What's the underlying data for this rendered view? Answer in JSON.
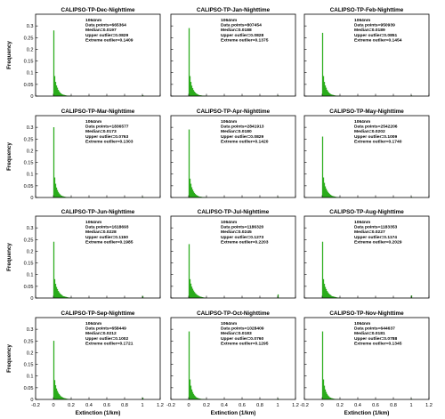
{
  "figure": {
    "y_label": "Frequency",
    "x_label": "Extinction (1/km)"
  },
  "chart_data": [
    {
      "type": "bar",
      "title": "CALIPSO-TP-Dec-Nighttime",
      "stats": [
        "1064nm",
        "Data points=665364",
        "Median=0.0197",
        "Upper outlier=0.0829",
        "Extreme outlier=0.1409"
      ],
      "bin_start": 0,
      "bin_width": 0.01,
      "values": [
        0.28,
        0.085,
        0.06,
        0.045,
        0.035,
        0.026,
        0.02,
        0.015,
        0.011,
        0.008,
        0.006,
        0.005,
        0.004,
        0.003,
        0.002,
        0.0015,
        0.001,
        0.0008,
        0.0005,
        0.0003
      ],
      "extra_bars": [
        {
          "x": 1.0,
          "value": 0.003
        }
      ],
      "xlim": [
        -0.2,
        1.2
      ],
      "ylim": [
        0,
        0.35
      ]
    },
    {
      "type": "bar",
      "title": "CALIPSO-TP-Jan-Nighttime",
      "stats": [
        "1064nm",
        "Data points=807454",
        "Median=0.0188",
        "Upper outlier=0.0828",
        "Extreme outlier=0.1375"
      ],
      "bin_start": 0,
      "bin_width": 0.01,
      "values": [
        0.29,
        0.085,
        0.06,
        0.044,
        0.033,
        0.025,
        0.019,
        0.014,
        0.01,
        0.008,
        0.006,
        0.004,
        0.003,
        0.0025,
        0.002,
        0.0015,
        0.001,
        0.0008,
        0.0005,
        0.0003
      ],
      "extra_bars": [
        {
          "x": 1.0,
          "value": 0.002
        }
      ],
      "xlim": [
        -0.2,
        1.2
      ],
      "ylim": [
        0,
        0.35
      ]
    },
    {
      "type": "bar",
      "title": "CALIPSO-TP-Feb-Nighttime",
      "stats": [
        "1064nm",
        "Data points=950939",
        "Median=0.0189",
        "Upper outlier=0.0851",
        "Extreme outlier=0.1454"
      ],
      "bin_start": 0,
      "bin_width": 0.01,
      "values": [
        0.27,
        0.085,
        0.06,
        0.045,
        0.035,
        0.026,
        0.02,
        0.015,
        0.011,
        0.008,
        0.006,
        0.005,
        0.004,
        0.003,
        0.002,
        0.0015,
        0.001,
        0.0008,
        0.0005,
        0.0003
      ],
      "extra_bars": [
        {
          "x": 1.0,
          "value": 0.002
        }
      ],
      "xlim": [
        -0.2,
        1.2
      ],
      "ylim": [
        0,
        0.35
      ]
    },
    {
      "type": "bar",
      "title": "CALIPSO-TP-Mar-Nighttime",
      "stats": [
        "1064nm",
        "Data points=1836577",
        "Median=0.0173",
        "Upper outlier=0.0763",
        "Extreme outlier=0.1303"
      ],
      "bin_start": 0,
      "bin_width": 0.01,
      "values": [
        0.3,
        0.085,
        0.058,
        0.042,
        0.031,
        0.023,
        0.017,
        0.013,
        0.009,
        0.007,
        0.005,
        0.004,
        0.003,
        0.002,
        0.0015,
        0.001,
        0.0008,
        0.0005,
        0.0003,
        0.0002
      ],
      "extra_bars": [
        {
          "x": 1.0,
          "value": 0.002
        }
      ],
      "xlim": [
        -0.2,
        1.2
      ],
      "ylim": [
        0,
        0.35
      ]
    },
    {
      "type": "bar",
      "title": "CALIPSO-TP-Apr-Nighttime",
      "stats": [
        "1064nm",
        "Data points=2841913",
        "Median=0.0180",
        "Upper outlier=0.0829",
        "Extreme outlier=0.1420"
      ],
      "bin_start": 0,
      "bin_width": 0.01,
      "values": [
        0.29,
        0.08,
        0.058,
        0.043,
        0.033,
        0.025,
        0.019,
        0.014,
        0.01,
        0.008,
        0.006,
        0.004,
        0.003,
        0.0025,
        0.002,
        0.0015,
        0.001,
        0.0008,
        0.0005,
        0.0003
      ],
      "extra_bars": [
        {
          "x": 1.0,
          "value": 0.002
        }
      ],
      "xlim": [
        -0.2,
        1.2
      ],
      "ylim": [
        0,
        0.35
      ]
    },
    {
      "type": "bar",
      "title": "CALIPSO-TP-May-Nighttime",
      "stats": [
        "1064nm",
        "Data points=2542206",
        "Median=0.0202",
        "Upper outlier=0.1009",
        "Extreme outlier=0.1740"
      ],
      "bin_start": 0,
      "bin_width": 0.01,
      "values": [
        0.26,
        0.085,
        0.062,
        0.047,
        0.037,
        0.029,
        0.023,
        0.018,
        0.014,
        0.011,
        0.008,
        0.006,
        0.005,
        0.004,
        0.003,
        0.002,
        0.0015,
        0.001,
        0.0008,
        0.0005
      ],
      "extra_bars": [
        {
          "x": 1.0,
          "value": 0.002
        }
      ],
      "xlim": [
        -0.2,
        1.2
      ],
      "ylim": [
        0,
        0.35
      ]
    },
    {
      "type": "bar",
      "title": "CALIPSO-TP-Jun-Nighttime",
      "stats": [
        "1064nm",
        "Data points=1618693",
        "Median=0.0228",
        "Upper outlier=0.1150",
        "Extreme outlier=0.1985"
      ],
      "bin_start": 0,
      "bin_width": 0.01,
      "values": [
        0.24,
        0.08,
        0.06,
        0.047,
        0.038,
        0.03,
        0.024,
        0.019,
        0.015,
        0.012,
        0.009,
        0.007,
        0.006,
        0.005,
        0.004,
        0.003,
        0.002,
        0.0015,
        0.001,
        0.0008
      ],
      "extra_bars": [
        {
          "x": 1.0,
          "value": 0.008
        }
      ],
      "xlim": [
        -0.2,
        1.2
      ],
      "ylim": [
        0,
        0.35
      ]
    },
    {
      "type": "bar",
      "title": "CALIPSO-TP-Jul-Nighttime",
      "stats": [
        "1064nm",
        "Data points=1186320",
        "Median=0.0245",
        "Upper outlier=0.1273",
        "Extreme outlier=0.2203"
      ],
      "bin_start": 0,
      "bin_width": 0.01,
      "values": [
        0.23,
        0.08,
        0.061,
        0.048,
        0.039,
        0.031,
        0.025,
        0.02,
        0.016,
        0.013,
        0.01,
        0.008,
        0.006,
        0.005,
        0.004,
        0.003,
        0.002,
        0.0015,
        0.001,
        0.0008
      ],
      "extra_bars": [
        {
          "x": 1.0,
          "value": 0.015
        }
      ],
      "xlim": [
        -0.2,
        1.2
      ],
      "ylim": [
        0,
        0.35
      ]
    },
    {
      "type": "bar",
      "title": "CALIPSO-TP-Aug-Nighttime",
      "stats": [
        "1064nm",
        "Data points=1183353",
        "Median=0.0227",
        "Upper outlier=0.1174",
        "Extreme outlier=0.2029"
      ],
      "bin_start": 0,
      "bin_width": 0.01,
      "values": [
        0.24,
        0.08,
        0.06,
        0.047,
        0.038,
        0.03,
        0.024,
        0.019,
        0.015,
        0.012,
        0.009,
        0.007,
        0.006,
        0.005,
        0.004,
        0.003,
        0.002,
        0.0015,
        0.001,
        0.0008
      ],
      "extra_bars": [
        {
          "x": 1.0,
          "value": 0.01
        }
      ],
      "xlim": [
        -0.2,
        1.2
      ],
      "ylim": [
        0,
        0.35
      ]
    },
    {
      "type": "bar",
      "title": "CALIPSO-TP-Sep-Nighttime",
      "stats": [
        "1064nm",
        "Data points=658449",
        "Median=0.0212",
        "Upper outlier=0.1002",
        "Extreme outlier=0.1721"
      ],
      "bin_start": 0,
      "bin_width": 0.01,
      "values": [
        0.25,
        0.082,
        0.06,
        0.046,
        0.036,
        0.028,
        0.022,
        0.017,
        0.013,
        0.01,
        0.008,
        0.006,
        0.005,
        0.004,
        0.003,
        0.002,
        0.0015,
        0.001,
        0.0008,
        0.0005
      ],
      "extra_bars": [
        {
          "x": 1.0,
          "value": 0.007
        }
      ],
      "xlim": [
        -0.2,
        1.2
      ],
      "ylim": [
        0,
        0.35
      ]
    },
    {
      "type": "bar",
      "title": "CALIPSO-TP-Oct-Nighttime",
      "stats": [
        "1064nm",
        "Data points=1028409",
        "Median=0.0183",
        "Upper outlier=0.0760",
        "Extreme outlier=0.1295"
      ],
      "bin_start": 0,
      "bin_width": 0.01,
      "values": [
        0.29,
        0.085,
        0.058,
        0.042,
        0.031,
        0.023,
        0.017,
        0.013,
        0.009,
        0.007,
        0.005,
        0.004,
        0.003,
        0.002,
        0.0015,
        0.001,
        0.0008,
        0.0005,
        0.0003,
        0.0002
      ],
      "extra_bars": [
        {
          "x": 1.0,
          "value": 0.003
        }
      ],
      "xlim": [
        -0.2,
        1.2
      ],
      "ylim": [
        0,
        0.35
      ]
    },
    {
      "type": "bar",
      "title": "CALIPSO-TP-Nov-Nighttime",
      "stats": [
        "1064nm",
        "Data points=644637",
        "Median=0.0181",
        "Upper outlier=0.0788",
        "Extreme outlier=0.1345"
      ],
      "bin_start": 0,
      "bin_width": 0.01,
      "values": [
        0.29,
        0.085,
        0.058,
        0.042,
        0.031,
        0.023,
        0.017,
        0.013,
        0.009,
        0.007,
        0.005,
        0.004,
        0.003,
        0.002,
        0.0015,
        0.001,
        0.0008,
        0.0005,
        0.0003,
        0.0002
      ],
      "extra_bars": [
        {
          "x": 1.0,
          "value": 0.002
        }
      ],
      "xlim": [
        -0.2,
        1.2
      ],
      "ylim": [
        0,
        0.35
      ]
    }
  ],
  "axes": {
    "x_ticks": [
      "-0.2",
      "0",
      "0.2",
      "0.4",
      "0.6",
      "0.8",
      "1",
      "1.2"
    ],
    "y_ticks": [
      "0",
      "0.05",
      "0.1",
      "0.15",
      "0.2",
      "0.25",
      "0.3"
    ]
  },
  "colors": {
    "bar_fill": "#33bb22",
    "bar_edge": "#1f8f12",
    "axis": "#000000"
  }
}
